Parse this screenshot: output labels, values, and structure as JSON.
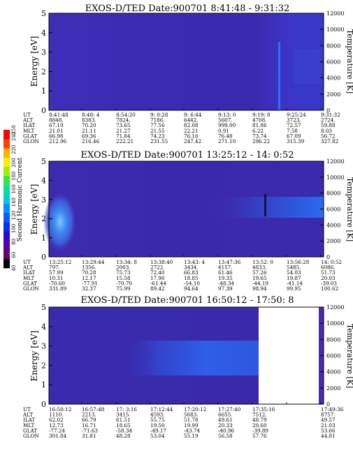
{
  "chart_data": [
    {
      "type": "heatmap",
      "title": "EXOS-D/TED   Date:900701  8:41:48 - 9:31:32",
      "ylabel": "Energy [eV]",
      "ylabel2": "Temperature [K]",
      "ylim": [
        0,
        5
      ],
      "ylim2": [
        0,
        12000
      ],
      "yticks": [
        "0",
        "1",
        "2",
        "3",
        "4",
        "5"
      ],
      "yticks2": [
        "0",
        "2000",
        "4000",
        "6000",
        "8000",
        "10000",
        "12000"
      ],
      "table": {
        "rows": [
          {
            "label": "UT",
            "values": [
              "8:41:48",
              "8:48: 4",
              "8:54:20",
              "9: 0:28",
              "9: 6:44",
              "9:13: 0",
              "9:19: 8",
              "9:25:24",
              "9:31:32"
            ]
          },
          {
            "label": "ALT",
            "values": [
              "8848.",
              "8383.",
              "7824.",
              "7186.",
              "6442.",
              "5607.",
              "4708.",
              "3723.",
              "2724."
            ]
          },
          {
            "label": "ILAT",
            "values": [
              "67.19",
              "70.20",
              "73.65",
              "77.56",
              "82.08",
              "999.00",
              "81.86",
              "72.57",
              "59.88"
            ]
          },
          {
            "label": "MLT",
            "values": [
              "21.01",
              "21.11",
              "21.27",
              "21.55",
              "22.21",
              "0.91",
              "6.22",
              "7.58",
              "8.03"
            ]
          },
          {
            "label": "GLAT",
            "values": [
              "66.98",
              "69.36",
              "71.84",
              "74.23",
              "76.16",
              "76.48",
              "73.74",
              "67.09",
              "56.72"
            ]
          },
          {
            "label": "GLON",
            "values": [
              "212.96",
              "216.46",
              "222.21",
              "231.55",
              "247.42",
              "271.10",
              "296.22",
              "315.39",
              "327.82"
            ]
          }
        ]
      }
    },
    {
      "type": "heatmap",
      "title": "EXOS-D/TED   Date:900701  13:25:12 - 14: 0:52",
      "ylabel": "Energy [eV]",
      "ylabel2": "Temperature [K]",
      "ylim": [
        0,
        5
      ],
      "ylim2": [
        0,
        12000
      ],
      "yticks": [
        "0",
        "1",
        "2",
        "3",
        "4",
        "5"
      ],
      "yticks2": [
        "0",
        "2000",
        "4000",
        "6000",
        "8000",
        "10000",
        "12000"
      ],
      "table": {
        "rows": [
          {
            "label": "UT",
            "values": [
              "13:25:12",
              "13:29:44",
              "13:34: 8",
              "13:38:40",
              "13:43: 4",
              "13:47:36",
              "13:52: 0",
              "13:56:28",
              "14: 0:52"
            ]
          },
          {
            "label": "ALT",
            "values": [
              "797.",
              "1356.",
              "2003.",
              "2722.",
              "3434.",
              "4157.",
              "4833.",
              "5485.",
              "6086."
            ]
          },
          {
            "label": "ILAT",
            "values": [
              "57.99",
              "70.28",
              "75.73",
              "72.40",
              "66.83",
              "61.46",
              "57.26",
              "54.03",
              "51.73"
            ]
          },
          {
            "label": "MLT",
            "values": [
              "10.31",
              "12.17",
              "15.58",
              "17.90",
              "18.85",
              "19.35",
              "19.65",
              "19.87",
              "20.03"
            ]
          },
          {
            "label": "GLAT",
            "values": [
              "-70.60",
              "-77.91",
              "-70.70",
              "-61.44",
              "-54.10",
              "-48.34",
              "-44.19",
              "-41.14",
              "-39.03"
            ]
          },
          {
            "label": "GLON",
            "values": [
              "331.89",
              "32.37",
              "75.99",
              "89.42",
              "94.64",
              "97.39",
              "98.94",
              "99.95",
              "100.62"
            ]
          }
        ]
      }
    },
    {
      "type": "heatmap",
      "title": "EXOS-D/TED   Date:900701  16:50:12 - 17:50: 8",
      "ylabel": "Energy [eV]",
      "ylabel2": "Temperature [K]",
      "ylim": [
        0,
        5
      ],
      "ylim2": [
        0,
        12000
      ],
      "yticks": [
        "0",
        "1",
        "2",
        "3",
        "4",
        "5"
      ],
      "yticks2": [
        "0",
        "2000",
        "4000",
        "6000",
        "8000",
        "10000",
        "12000"
      ],
      "table": {
        "rows": [
          {
            "label": "UT",
            "values": [
              "16:50:12",
              "16:57:48",
              "17: 3:16",
              "17:12:44",
              "17:20:12",
              "17:27:40",
              "17:35:16",
              "",
              "17:49:36"
            ]
          },
          {
            "label": "ALT",
            "values": [
              "1110.",
              "2213.",
              "3415.",
              "4593.",
              "5683.",
              "6655.",
              "7512.",
              "",
              "8757."
            ]
          },
          {
            "label": "ILAT",
            "values": [
              "62.02",
              "66.79",
              "61.51",
              "55.75",
              "51.78",
              "49.61",
              "48.79",
              "",
              "49.57"
            ]
          },
          {
            "label": "MLT",
            "values": [
              "12.73",
              "16.71",
              "18.65",
              "19.50",
              "19.99",
              "20.33",
              "20.60",
              "",
              "21.03"
            ]
          },
          {
            "label": "GLAT",
            "values": [
              "-77.24",
              "-71.63",
              "-58.34",
              "-49.17",
              "-43.74",
              "-40.96",
              "-39.89",
              "",
              "53.66"
            ]
          },
          {
            "label": "GLON",
            "values": [
              "301.84",
              "31.81",
              "48.28",
              "53.04",
              "55.19",
              "56.58",
              "57.76",
              "",
              "44.81"
            ]
          }
        ]
      }
    }
  ],
  "colorbar": {
    "label": "Second Harmonic Current",
    "ticks": [
      "40",
      "60",
      "80",
      "100",
      "120",
      "140",
      "160",
      "180",
      "200",
      "220",
      "240",
      "250"
    ],
    "range": [
      40,
      250
    ],
    "colors": [
      "#000000",
      "#6a006a",
      "#5a00a8",
      "#2a0ad0",
      "#0a2ef0",
      "#005cff",
      "#0090ff",
      "#00c8e8",
      "#00e0a0",
      "#30e840",
      "#a0f000",
      "#f0f000",
      "#ffb000",
      "#ff4000",
      "#ff0000"
    ]
  }
}
